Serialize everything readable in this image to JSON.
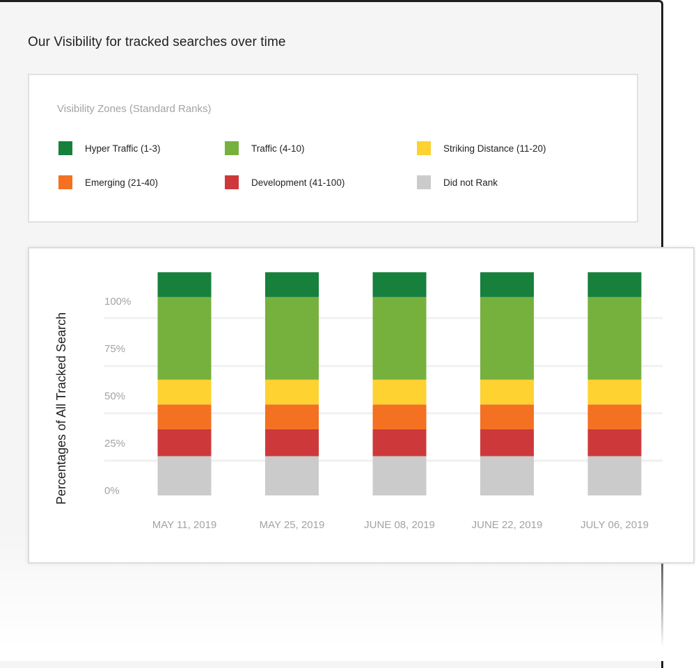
{
  "header": {
    "title": "Our Visibility for tracked searches over time"
  },
  "legend": {
    "heading": "Visibility Zones (Standard Ranks)",
    "items": [
      {
        "label": "Hyper Traffic (1-3)",
        "color": "#16803c"
      },
      {
        "label": "Traffic (4-10)",
        "color": "#76b13d"
      },
      {
        "label": "Striking Distance (11-20)",
        "color": "#fdd231"
      },
      {
        "label": "Emerging (21-40)",
        "color": "#f37121"
      },
      {
        "label": "Development (41-100)",
        "color": "#cd393a"
      },
      {
        "label": "Did not Rank",
        "color": "#cbcbcb"
      }
    ]
  },
  "chart_data": {
    "type": "bar",
    "stacked": true,
    "ylabel": "Percentages of All Tracked Search",
    "ylim": [
      0,
      100
    ],
    "yticks": [
      "0%",
      "25%",
      "50%",
      "75%",
      "100%"
    ],
    "grid": true,
    "categories": [
      "MAY 11, 2019",
      "MAY 25, 2019",
      "JUNE 08, 2019",
      "JUNE 22, 2019",
      "JULY 06, 2019"
    ],
    "series": [
      {
        "name": "Did not Rank",
        "color": "#cbcbcb",
        "values": [
          19,
          19,
          19,
          19,
          19
        ]
      },
      {
        "name": "Development (41-100)",
        "color": "#cd393a",
        "values": [
          13,
          13,
          13,
          13,
          13
        ]
      },
      {
        "name": "Emerging (21-40)",
        "color": "#f37121",
        "values": [
          12,
          12,
          12,
          12,
          12
        ]
      },
      {
        "name": "Striking Distance (11-20)",
        "color": "#fdd231",
        "values": [
          12,
          12,
          12,
          12,
          12
        ]
      },
      {
        "name": "Traffic (4-10)",
        "color": "#76b13d",
        "values": [
          40,
          40,
          40,
          40,
          40
        ]
      },
      {
        "name": "Hyper Traffic (1-3)",
        "color": "#16803c",
        "values": [
          12,
          12,
          12,
          12,
          12
        ]
      }
    ]
  }
}
